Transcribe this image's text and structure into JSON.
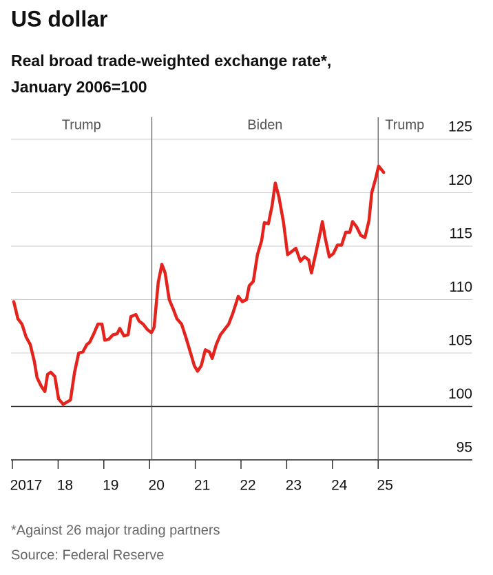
{
  "chart_data": {
    "type": "line",
    "title": "US dollar",
    "subtitle": [
      "Real broad trade-weighted exchange rate*,",
      "January 2006=100"
    ],
    "footnotes": [
      "*Against 26 major trading partners",
      "Source: Federal Reserve"
    ],
    "color": "#e3231c",
    "x": [
      2017.03,
      2017.12,
      2017.21,
      2017.3,
      2017.39,
      2017.48,
      2017.54,
      2017.63,
      2017.71,
      2017.77,
      2017.84,
      2017.93,
      2018.01,
      2018.11,
      2018.27,
      2018.36,
      2018.45,
      2018.54,
      2018.63,
      2018.69,
      2018.78,
      2018.87,
      2018.96,
      2019.02,
      2019.11,
      2019.2,
      2019.29,
      2019.35,
      2019.44,
      2019.53,
      2019.59,
      2019.7,
      2019.77,
      2019.86,
      2019.95,
      2020.04,
      2020.1,
      2020.19,
      2020.27,
      2020.34,
      2020.43,
      2020.52,
      2020.6,
      2020.7,
      2020.8,
      2020.89,
      2020.98,
      2021.05,
      2021.13,
      2021.22,
      2021.31,
      2021.37,
      2021.46,
      2021.55,
      2021.64,
      2021.73,
      2021.82,
      2021.94,
      2022.03,
      2022.12,
      2022.18,
      2022.27,
      2022.36,
      2022.45,
      2022.51,
      2022.6,
      2022.68,
      2022.75,
      2022.83,
      2022.93,
      2023.02,
      2023.11,
      2023.2,
      2023.3,
      2023.39,
      2023.48,
      2023.54,
      2023.63,
      2023.72,
      2023.78,
      2023.84,
      2023.93,
      2024.02,
      2024.11,
      2024.2,
      2024.29,
      2024.38,
      2024.44,
      2024.53,
      2024.62,
      2024.71,
      2024.8,
      2024.86,
      2024.95,
      2025.01,
      2025.12
    ],
    "values": [
      109.8,
      108.2,
      107.7,
      106.5,
      105.8,
      104.2,
      102.7,
      101.9,
      101.4,
      103.0,
      103.2,
      102.8,
      100.7,
      100.2,
      100.6,
      103.2,
      105.0,
      105.1,
      105.8,
      106.0,
      106.8,
      107.7,
      107.7,
      106.2,
      106.3,
      106.7,
      106.8,
      107.3,
      106.6,
      106.7,
      108.4,
      108.6,
      108.0,
      107.7,
      107.2,
      106.9,
      107.4,
      111.6,
      113.3,
      112.5,
      110.0,
      109.1,
      108.2,
      107.7,
      106.4,
      105.1,
      103.8,
      103.3,
      103.8,
      105.3,
      105.1,
      104.5,
      105.8,
      106.7,
      107.2,
      107.7,
      108.7,
      110.3,
      109.8,
      110.0,
      111.3,
      111.7,
      114.2,
      115.5,
      117.2,
      117.1,
      118.8,
      120.9,
      119.6,
      117.2,
      114.2,
      114.5,
      114.8,
      113.6,
      114.0,
      113.7,
      112.5,
      114.2,
      116.0,
      117.3,
      115.8,
      114.0,
      114.3,
      115.1,
      115.1,
      116.3,
      116.3,
      117.3,
      116.8,
      116.0,
      115.8,
      117.4,
      120.0,
      121.4,
      122.5,
      121.9
    ],
    "xlim": [
      2016.97,
      2027.06
    ],
    "ylim": [
      95,
      125
    ],
    "xticks": [
      {
        "value": 2017,
        "label": "2017"
      },
      {
        "value": 2018,
        "label": "18"
      },
      {
        "value": 2019,
        "label": "19"
      },
      {
        "value": 2020,
        "label": "20"
      },
      {
        "value": 2021,
        "label": "21"
      },
      {
        "value": 2022,
        "label": "22"
      },
      {
        "value": 2023,
        "label": "23"
      },
      {
        "value": 2024,
        "label": "24"
      },
      {
        "value": 2025,
        "label": "25"
      }
    ],
    "yticks": [
      95,
      100,
      105,
      110,
      115,
      120,
      125
    ],
    "baseline": 100,
    "periods": [
      {
        "label": "Trump",
        "end": 2020.05
      },
      {
        "label": "Biden",
        "end": 2025.0
      },
      {
        "label": "Trump"
      }
    ],
    "grid": true
  }
}
